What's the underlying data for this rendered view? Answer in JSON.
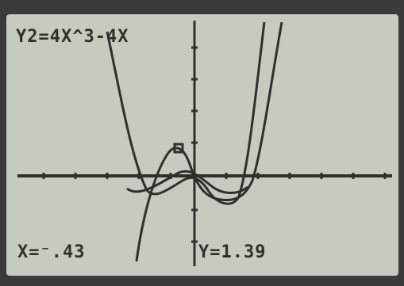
{
  "screen": {
    "equation": "Y2=4X^3-4X",
    "x_readout": "X=⁻.43",
    "y_readout": "Y=1.39"
  }
}
